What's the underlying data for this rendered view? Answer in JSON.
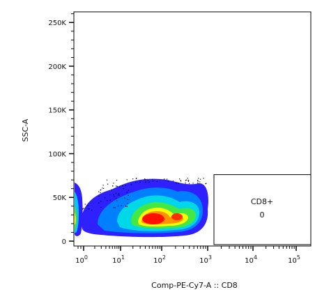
{
  "chart_data": {
    "type": "scatter",
    "subtype": "flow-cytometry-density-plot",
    "xlabel": "Comp-PE-Cy7-A :: CD8",
    "ylabel": "SSC-A",
    "xscale": "log",
    "x_ticks": [
      {
        "value": 1,
        "base": "10",
        "exp": "0"
      },
      {
        "value": 10,
        "base": "10",
        "exp": "1"
      },
      {
        "value": 100,
        "base": "10",
        "exp": "2"
      },
      {
        "value": 1000,
        "base": "10",
        "exp": "3"
      },
      {
        "value": 10000,
        "base": "10",
        "exp": "4"
      },
      {
        "value": 100000,
        "base": "10",
        "exp": "5"
      }
    ],
    "y_ticks": [
      {
        "value": 0,
        "label": "0"
      },
      {
        "value": 50000,
        "label": "50K"
      },
      {
        "value": 100000,
        "label": "100K"
      },
      {
        "value": 150000,
        "label": "150K"
      },
      {
        "value": 200000,
        "label": "200K"
      },
      {
        "value": 250000,
        "label": "250K"
      }
    ],
    "ylim": [
      0,
      262144
    ],
    "gate": {
      "name": "CD8+",
      "value": "0",
      "x_range": [
        1000,
        200000
      ],
      "y_range": [
        -4000,
        76000
      ]
    },
    "density_colors": [
      "#2020ff",
      "#00a0ff",
      "#00e8d0",
      "#40e040",
      "#ffff00",
      "#ff8000",
      "#ff0000"
    ],
    "grid": false
  }
}
